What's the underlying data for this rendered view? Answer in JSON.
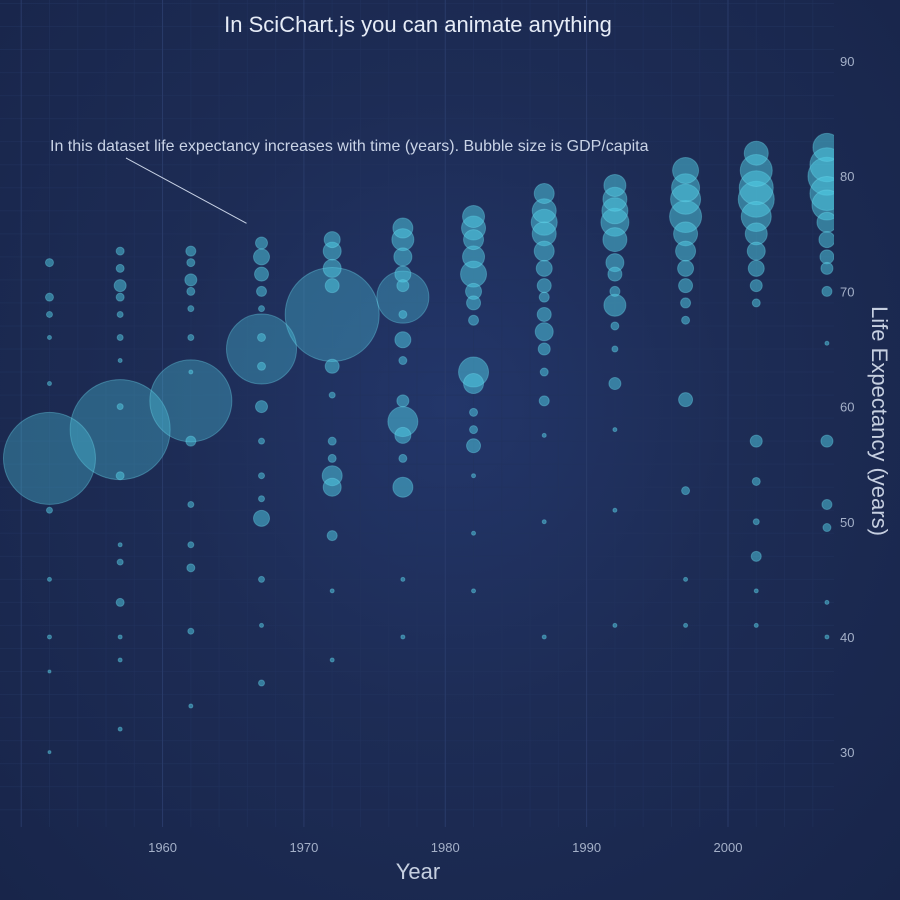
{
  "chart_data": {
    "type": "scatter",
    "title": "In SciChart.js you can animate anything",
    "xlabel": "Year",
    "ylabel": "Life Expectancy (years)",
    "xlim": [
      1948.5,
      2007.5
    ],
    "ylim": [
      23.5,
      95.3
    ],
    "x_ticks": [
      1960,
      1970,
      1980,
      1990,
      2000
    ],
    "y_ticks": [
      30,
      40,
      50,
      60,
      70,
      80,
      90
    ],
    "y_axis_position": "right",
    "grid": true,
    "annotation": {
      "text": "In this dataset life expectancy increases with time (years). Bubble size is GDP/capita",
      "points_to": {
        "x": 1967,
        "y": 74
      }
    },
    "series": [
      {
        "bubble_size_meaning": "GDP/capita",
        "years": [
          1952,
          1957,
          1962,
          1967,
          1972,
          1977,
          1982,
          1987,
          1992,
          1997,
          2002,
          2007
        ],
        "points": [
          {
            "x": 1952,
            "y": 55.5,
            "r": 46
          },
          {
            "x": 1952,
            "y": 72.5,
            "r": 4
          },
          {
            "x": 1952,
            "y": 69.5,
            "r": 4
          },
          {
            "x": 1952,
            "y": 68,
            "r": 3
          },
          {
            "x": 1952,
            "y": 66,
            "r": 2
          },
          {
            "x": 1952,
            "y": 62,
            "r": 2
          },
          {
            "x": 1952,
            "y": 51,
            "r": 3
          },
          {
            "x": 1952,
            "y": 45,
            "r": 2
          },
          {
            "x": 1952,
            "y": 40,
            "r": 2
          },
          {
            "x": 1952,
            "y": 37,
            "r": 1.5
          },
          {
            "x": 1952,
            "y": 30,
            "r": 1.5
          },
          {
            "x": 1957,
            "y": 58,
            "r": 50
          },
          {
            "x": 1957,
            "y": 73.5,
            "r": 4
          },
          {
            "x": 1957,
            "y": 72,
            "r": 4
          },
          {
            "x": 1957,
            "y": 70.5,
            "r": 6
          },
          {
            "x": 1957,
            "y": 69.5,
            "r": 4
          },
          {
            "x": 1957,
            "y": 68,
            "r": 3
          },
          {
            "x": 1957,
            "y": 66,
            "r": 3
          },
          {
            "x": 1957,
            "y": 64,
            "r": 2
          },
          {
            "x": 1957,
            "y": 60,
            "r": 3
          },
          {
            "x": 1957,
            "y": 54,
            "r": 4
          },
          {
            "x": 1957,
            "y": 48,
            "r": 2
          },
          {
            "x": 1957,
            "y": 46.5,
            "r": 3
          },
          {
            "x": 1957,
            "y": 43,
            "r": 4
          },
          {
            "x": 1957,
            "y": 40,
            "r": 2
          },
          {
            "x": 1957,
            "y": 38,
            "r": 2
          },
          {
            "x": 1957,
            "y": 32,
            "r": 2
          },
          {
            "x": 1962,
            "y": 60.5,
            "r": 41
          },
          {
            "x": 1962,
            "y": 73.5,
            "r": 5
          },
          {
            "x": 1962,
            "y": 72.5,
            "r": 4
          },
          {
            "x": 1962,
            "y": 71,
            "r": 6
          },
          {
            "x": 1962,
            "y": 70,
            "r": 4
          },
          {
            "x": 1962,
            "y": 68.5,
            "r": 3
          },
          {
            "x": 1962,
            "y": 66,
            "r": 3
          },
          {
            "x": 1962,
            "y": 63,
            "r": 2
          },
          {
            "x": 1962,
            "y": 57,
            "r": 5
          },
          {
            "x": 1962,
            "y": 51.5,
            "r": 3
          },
          {
            "x": 1962,
            "y": 48,
            "r": 3
          },
          {
            "x": 1962,
            "y": 46,
            "r": 4
          },
          {
            "x": 1962,
            "y": 40.5,
            "r": 3
          },
          {
            "x": 1962,
            "y": 34,
            "r": 2
          },
          {
            "x": 1967,
            "y": 65,
            "r": 35
          },
          {
            "x": 1967,
            "y": 74.2,
            "r": 6
          },
          {
            "x": 1967,
            "y": 73,
            "r": 8
          },
          {
            "x": 1967,
            "y": 71.5,
            "r": 7
          },
          {
            "x": 1967,
            "y": 70,
            "r": 5
          },
          {
            "x": 1967,
            "y": 68.5,
            "r": 3
          },
          {
            "x": 1967,
            "y": 66,
            "r": 4
          },
          {
            "x": 1967,
            "y": 63.5,
            "r": 4
          },
          {
            "x": 1967,
            "y": 60,
            "r": 6
          },
          {
            "x": 1967,
            "y": 57,
            "r": 3
          },
          {
            "x": 1967,
            "y": 54,
            "r": 3
          },
          {
            "x": 1967,
            "y": 52,
            "r": 3
          },
          {
            "x": 1967,
            "y": 50.3,
            "r": 8
          },
          {
            "x": 1967,
            "y": 45,
            "r": 3
          },
          {
            "x": 1967,
            "y": 41,
            "r": 2
          },
          {
            "x": 1967,
            "y": 36,
            "r": 3
          },
          {
            "x": 1972,
            "y": 68,
            "r": 47
          },
          {
            "x": 1972,
            "y": 74.5,
            "r": 8
          },
          {
            "x": 1972,
            "y": 73.5,
            "r": 9
          },
          {
            "x": 1972,
            "y": 72,
            "r": 9
          },
          {
            "x": 1972,
            "y": 70.5,
            "r": 7
          },
          {
            "x": 1972,
            "y": 63.5,
            "r": 7
          },
          {
            "x": 1972,
            "y": 61,
            "r": 3
          },
          {
            "x": 1972,
            "y": 57,
            "r": 4
          },
          {
            "x": 1972,
            "y": 55.5,
            "r": 4
          },
          {
            "x": 1972,
            "y": 54,
            "r": 10
          },
          {
            "x": 1972,
            "y": 53,
            "r": 9
          },
          {
            "x": 1972,
            "y": 48.8,
            "r": 5
          },
          {
            "x": 1972,
            "y": 44,
            "r": 2
          },
          {
            "x": 1972,
            "y": 38,
            "r": 2
          },
          {
            "x": 1977,
            "y": 69.5,
            "r": 26
          },
          {
            "x": 1977,
            "y": 75.5,
            "r": 10
          },
          {
            "x": 1977,
            "y": 74.5,
            "r": 11
          },
          {
            "x": 1977,
            "y": 73,
            "r": 9
          },
          {
            "x": 1977,
            "y": 71.5,
            "r": 8
          },
          {
            "x": 1977,
            "y": 70.5,
            "r": 6
          },
          {
            "x": 1977,
            "y": 68,
            "r": 4
          },
          {
            "x": 1977,
            "y": 65.8,
            "r": 8
          },
          {
            "x": 1977,
            "y": 64,
            "r": 4
          },
          {
            "x": 1977,
            "y": 60.5,
            "r": 6
          },
          {
            "x": 1977,
            "y": 58.7,
            "r": 15
          },
          {
            "x": 1977,
            "y": 57.5,
            "r": 8
          },
          {
            "x": 1977,
            "y": 55.5,
            "r": 4
          },
          {
            "x": 1977,
            "y": 53,
            "r": 10
          },
          {
            "x": 1977,
            "y": 45,
            "r": 2
          },
          {
            "x": 1977,
            "y": 40,
            "r": 2
          },
          {
            "x": 1982,
            "y": 76.5,
            "r": 11
          },
          {
            "x": 1982,
            "y": 75.5,
            "r": 12
          },
          {
            "x": 1982,
            "y": 74.5,
            "r": 10
          },
          {
            "x": 1982,
            "y": 73,
            "r": 11
          },
          {
            "x": 1982,
            "y": 71.5,
            "r": 13
          },
          {
            "x": 1982,
            "y": 70,
            "r": 8
          },
          {
            "x": 1982,
            "y": 69,
            "r": 7
          },
          {
            "x": 1982,
            "y": 67.5,
            "r": 5
          },
          {
            "x": 1982,
            "y": 63,
            "r": 15
          },
          {
            "x": 1982,
            "y": 62,
            "r": 10
          },
          {
            "x": 1982,
            "y": 59.5,
            "r": 4
          },
          {
            "x": 1982,
            "y": 58,
            "r": 4
          },
          {
            "x": 1982,
            "y": 56.6,
            "r": 7
          },
          {
            "x": 1982,
            "y": 54,
            "r": 2
          },
          {
            "x": 1982,
            "y": 49,
            "r": 2
          },
          {
            "x": 1982,
            "y": 44,
            "r": 2
          },
          {
            "x": 1987,
            "y": 78.5,
            "r": 10
          },
          {
            "x": 1987,
            "y": 77,
            "r": 12
          },
          {
            "x": 1987,
            "y": 76,
            "r": 13
          },
          {
            "x": 1987,
            "y": 75,
            "r": 12
          },
          {
            "x": 1987,
            "y": 73.5,
            "r": 10
          },
          {
            "x": 1987,
            "y": 72,
            "r": 8
          },
          {
            "x": 1987,
            "y": 70.5,
            "r": 7
          },
          {
            "x": 1987,
            "y": 69.5,
            "r": 5
          },
          {
            "x": 1987,
            "y": 68,
            "r": 7
          },
          {
            "x": 1987,
            "y": 66.5,
            "r": 9
          },
          {
            "x": 1987,
            "y": 65,
            "r": 6
          },
          {
            "x": 1987,
            "y": 63,
            "r": 4
          },
          {
            "x": 1987,
            "y": 60.5,
            "r": 5
          },
          {
            "x": 1987,
            "y": 57.5,
            "r": 2
          },
          {
            "x": 1987,
            "y": 50,
            "r": 2
          },
          {
            "x": 1987,
            "y": 40,
            "r": 2
          },
          {
            "x": 1992,
            "y": 79.2,
            "r": 11
          },
          {
            "x": 1992,
            "y": 78,
            "r": 12
          },
          {
            "x": 1992,
            "y": 77,
            "r": 13
          },
          {
            "x": 1992,
            "y": 76,
            "r": 14
          },
          {
            "x": 1992,
            "y": 74.5,
            "r": 12
          },
          {
            "x": 1992,
            "y": 72.5,
            "r": 9
          },
          {
            "x": 1992,
            "y": 71.5,
            "r": 7
          },
          {
            "x": 1992,
            "y": 70,
            "r": 5
          },
          {
            "x": 1992,
            "y": 68.8,
            "r": 11
          },
          {
            "x": 1992,
            "y": 67,
            "r": 4
          },
          {
            "x": 1992,
            "y": 65,
            "r": 3
          },
          {
            "x": 1992,
            "y": 62,
            "r": 6
          },
          {
            "x": 1992,
            "y": 58,
            "r": 2
          },
          {
            "x": 1992,
            "y": 51,
            "r": 2
          },
          {
            "x": 1992,
            "y": 41,
            "r": 2
          },
          {
            "x": 1997,
            "y": 80.5,
            "r": 13
          },
          {
            "x": 1997,
            "y": 79,
            "r": 14
          },
          {
            "x": 1997,
            "y": 78,
            "r": 15
          },
          {
            "x": 1997,
            "y": 76.5,
            "r": 16
          },
          {
            "x": 1997,
            "y": 75,
            "r": 12
          },
          {
            "x": 1997,
            "y": 73.5,
            "r": 10
          },
          {
            "x": 1997,
            "y": 72,
            "r": 8
          },
          {
            "x": 1997,
            "y": 70.5,
            "r": 7
          },
          {
            "x": 1997,
            "y": 69,
            "r": 5
          },
          {
            "x": 1997,
            "y": 67.5,
            "r": 4
          },
          {
            "x": 1997,
            "y": 60.6,
            "r": 7
          },
          {
            "x": 1997,
            "y": 52.7,
            "r": 4
          },
          {
            "x": 1997,
            "y": 45,
            "r": 2
          },
          {
            "x": 1997,
            "y": 41,
            "r": 2
          },
          {
            "x": 2002,
            "y": 82,
            "r": 12
          },
          {
            "x": 2002,
            "y": 80.5,
            "r": 16
          },
          {
            "x": 2002,
            "y": 79,
            "r": 17
          },
          {
            "x": 2002,
            "y": 78,
            "r": 18
          },
          {
            "x": 2002,
            "y": 76.5,
            "r": 15
          },
          {
            "x": 2002,
            "y": 75,
            "r": 11
          },
          {
            "x": 2002,
            "y": 73.5,
            "r": 9
          },
          {
            "x": 2002,
            "y": 72,
            "r": 8
          },
          {
            "x": 2002,
            "y": 70.5,
            "r": 6
          },
          {
            "x": 2002,
            "y": 69,
            "r": 4
          },
          {
            "x": 2002,
            "y": 57,
            "r": 6
          },
          {
            "x": 2002,
            "y": 53.5,
            "r": 4
          },
          {
            "x": 2002,
            "y": 50,
            "r": 3
          },
          {
            "x": 2002,
            "y": 47,
            "r": 5
          },
          {
            "x": 2002,
            "y": 44,
            "r": 2
          },
          {
            "x": 2002,
            "y": 41,
            "r": 2
          },
          {
            "x": 2007,
            "y": 82.5,
            "r": 14
          },
          {
            "x": 2007,
            "y": 81,
            "r": 17
          },
          {
            "x": 2007,
            "y": 80,
            "r": 19
          },
          {
            "x": 2007,
            "y": 78.5,
            "r": 17
          },
          {
            "x": 2007,
            "y": 77.5,
            "r": 15
          },
          {
            "x": 2007,
            "y": 76,
            "r": 10
          },
          {
            "x": 2007,
            "y": 74.5,
            "r": 8
          },
          {
            "x": 2007,
            "y": 73,
            "r": 7
          },
          {
            "x": 2007,
            "y": 72,
            "r": 6
          },
          {
            "x": 2007,
            "y": 70,
            "r": 5
          },
          {
            "x": 2007,
            "y": 65.5,
            "r": 2
          },
          {
            "x": 2007,
            "y": 57,
            "r": 6
          },
          {
            "x": 2007,
            "y": 51.5,
            "r": 5
          },
          {
            "x": 2007,
            "y": 49.5,
            "r": 4
          },
          {
            "x": 2007,
            "y": 43,
            "r": 2
          },
          {
            "x": 2007,
            "y": 40,
            "r": 2
          }
        ]
      }
    ]
  },
  "colors": {
    "bubble_fill": "#4fcde6",
    "bubble_stroke": "#6fdcf0",
    "grid_major": "#2b3d6c",
    "grid_minor": "#22335e",
    "background": "#1c2a4c"
  }
}
